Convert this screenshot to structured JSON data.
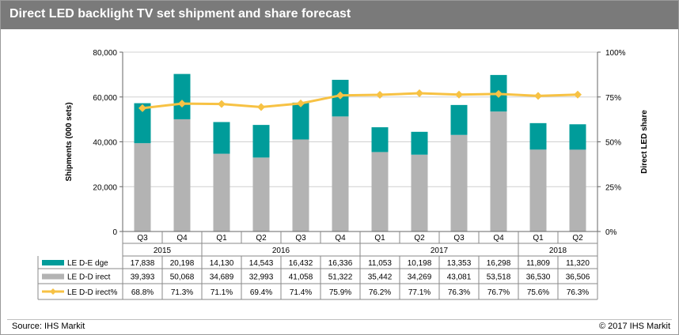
{
  "title": "Direct LED backlight TV set shipment and share forecast",
  "source": "Source: IHS Markit",
  "copyright": "© 2017 IHS Markit",
  "chart_data": {
    "type": "bar",
    "stacked": true,
    "categories": [
      "Q3",
      "Q4",
      "Q1",
      "Q2",
      "Q3",
      "Q4",
      "Q1",
      "Q2",
      "Q3",
      "Q4",
      "Q1",
      "Q2"
    ],
    "years": [
      {
        "label": "2015",
        "span": 2
      },
      {
        "label": "2016",
        "span": 4
      },
      {
        "label": "2017",
        "span": 4
      },
      {
        "label": "2018",
        "span": 2
      }
    ],
    "ylabel": "Shipments (000 sets)",
    "y2label": "Direct LED share",
    "ylim": [
      0,
      80000
    ],
    "y2lim": [
      0,
      100
    ],
    "yticks": [
      "0",
      "20,000",
      "40,000",
      "60,000",
      "80,000"
    ],
    "y2ticks": [
      "0%",
      "25%",
      "50%",
      "75%",
      "100%"
    ],
    "grid": true,
    "colors": {
      "edge": "#009c9a",
      "direct": "#b3b3b3",
      "share": "#f7c244"
    },
    "series": [
      {
        "name": "LE D-E dge",
        "key": "edge",
        "values": [
          17838,
          20198,
          14130,
          14543,
          16432,
          16336,
          11053,
          10198,
          13353,
          16298,
          11809,
          11320
        ],
        "labels": [
          "17,838",
          "20,198",
          "14,130",
          "14,543",
          "16,432",
          "16,336",
          "11,053",
          "10,198",
          "13,353",
          "16,298",
          "11,809",
          "11,320"
        ]
      },
      {
        "name": "LE D-D irect",
        "key": "direct",
        "values": [
          39393,
          50068,
          34689,
          32993,
          41058,
          51322,
          35442,
          34269,
          43081,
          53518,
          36530,
          36506
        ],
        "labels": [
          "39,393",
          "50,068",
          "34,689",
          "32,993",
          "41,058",
          "51,322",
          "35,442",
          "34,269",
          "43,081",
          "53,518",
          "36,530",
          "36,506"
        ]
      },
      {
        "name": "LE D-D irect%",
        "key": "share",
        "values": [
          68.8,
          71.3,
          71.1,
          69.4,
          71.4,
          75.9,
          76.2,
          77.1,
          76.3,
          76.7,
          75.6,
          76.3
        ],
        "labels": [
          "68.8%",
          "71.3%",
          "71.1%",
          "69.4%",
          "71.4%",
          "75.9%",
          "76.2%",
          "77.1%",
          "76.3%",
          "76.7%",
          "75.6%",
          "76.3%"
        ]
      }
    ]
  }
}
